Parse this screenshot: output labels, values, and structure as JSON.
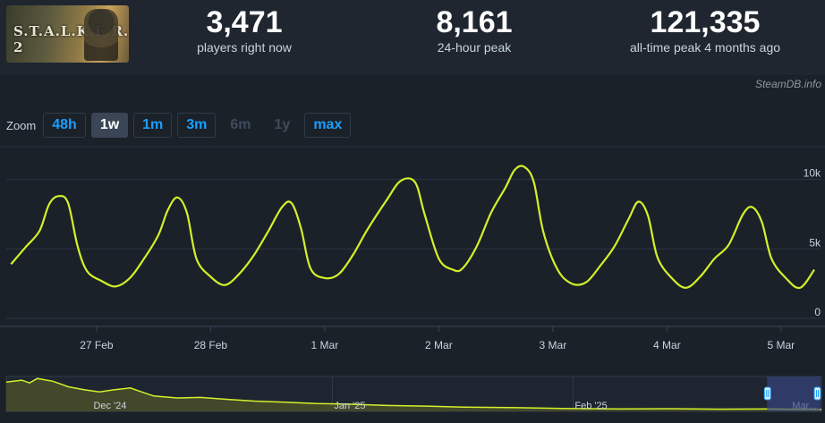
{
  "game": {
    "logo_text": "S.T.A.L.K.E.R. 2",
    "image": "game-cover-art"
  },
  "stats": [
    {
      "value": "3,471",
      "label": "players right now"
    },
    {
      "value": "8,161",
      "label": "24-hour peak"
    },
    {
      "value": "121,335",
      "label": "all-time peak 4 months ago"
    }
  ],
  "credit": "SteamDB.info",
  "zoom": {
    "label": "Zoom",
    "buttons": [
      {
        "label": "48h",
        "state": "enabled"
      },
      {
        "label": "1w",
        "state": "active"
      },
      {
        "label": "1m",
        "state": "enabled"
      },
      {
        "label": "3m",
        "state": "enabled"
      },
      {
        "label": "6m",
        "state": "disabled"
      },
      {
        "label": "1y",
        "state": "disabled"
      },
      {
        "label": "max",
        "state": "enabled"
      }
    ]
  },
  "colors": {
    "line": "#d4f02a",
    "background": "#1b2129",
    "accent": "#1a9fff",
    "navigator_fill": "#4a4f2a",
    "navigator_selection": "#3b4585"
  },
  "chart_data": {
    "type": "line",
    "series": [
      {
        "values": [
          [
            "2025-02-26T06:00",
            3900
          ],
          [
            "2025-02-26T09:00",
            5100
          ],
          [
            "2025-02-26T12:00",
            6300
          ],
          [
            "2025-02-26T14:00",
            8200
          ],
          [
            "2025-02-26T16:00",
            8800
          ],
          [
            "2025-02-26T18:00",
            8300
          ],
          [
            "2025-02-26T20:00",
            5200
          ],
          [
            "2025-02-26T22:00",
            3400
          ],
          [
            "2025-02-27T01:00",
            2700
          ],
          [
            "2025-02-27T04:00",
            2300
          ],
          [
            "2025-02-27T07:00",
            2900
          ],
          [
            "2025-02-27T10:00",
            4300
          ],
          [
            "2025-02-27T13:00",
            6000
          ],
          [
            "2025-02-27T15:00",
            7800
          ],
          [
            "2025-02-27T17:00",
            8700
          ],
          [
            "2025-02-27T19:00",
            7600
          ],
          [
            "2025-02-27T21:00",
            4300
          ],
          [
            "2025-02-28T00:00",
            3000
          ],
          [
            "2025-02-28T03:00",
            2400
          ],
          [
            "2025-02-28T06:00",
            3200
          ],
          [
            "2025-02-28T09:00",
            4500
          ],
          [
            "2025-02-28T12:00",
            6200
          ],
          [
            "2025-02-28T15:00",
            8000
          ],
          [
            "2025-02-28T17:00",
            8300
          ],
          [
            "2025-02-28T19:00",
            6500
          ],
          [
            "2025-02-28T21:00",
            3600
          ],
          [
            "2025-03-01T00:00",
            2900
          ],
          [
            "2025-03-01T03:00",
            3200
          ],
          [
            "2025-03-01T06:00",
            4600
          ],
          [
            "2025-03-01T09:00",
            6400
          ],
          [
            "2025-03-01T13:00",
            8500
          ],
          [
            "2025-03-01T16:00",
            9900
          ],
          [
            "2025-03-01T19:00",
            9800
          ],
          [
            "2025-03-01T21:00",
            7500
          ],
          [
            "2025-03-02T00:00",
            4300
          ],
          [
            "2025-03-02T03:00",
            3500
          ],
          [
            "2025-03-02T05:00",
            3600
          ],
          [
            "2025-03-02T08:00",
            5200
          ],
          [
            "2025-03-02T11:00",
            7600
          ],
          [
            "2025-03-02T14:00",
            9400
          ],
          [
            "2025-03-02T16:00",
            10700
          ],
          [
            "2025-03-02T18:00",
            10900
          ],
          [
            "2025-03-02T20:00",
            9800
          ],
          [
            "2025-03-02T22:00",
            6200
          ],
          [
            "2025-03-03T01:00",
            3500
          ],
          [
            "2025-03-03T04:00",
            2500
          ],
          [
            "2025-03-03T07:00",
            2600
          ],
          [
            "2025-03-03T10:00",
            3800
          ],
          [
            "2025-03-03T13:00",
            5200
          ],
          [
            "2025-03-03T16:00",
            7200
          ],
          [
            "2025-03-03T18:00",
            8400
          ],
          [
            "2025-03-03T20:00",
            7400
          ],
          [
            "2025-03-03T22:00",
            4400
          ],
          [
            "2025-03-04T01:00",
            2900
          ],
          [
            "2025-03-04T04:00",
            2200
          ],
          [
            "2025-03-04T07:00",
            3000
          ],
          [
            "2025-03-04T10:00",
            4300
          ],
          [
            "2025-03-04T13:00",
            5300
          ],
          [
            "2025-03-04T16:00",
            7500
          ],
          [
            "2025-03-04T18:00",
            8000
          ],
          [
            "2025-03-04T20:00",
            6900
          ],
          [
            "2025-03-04T22:00",
            4300
          ],
          [
            "2025-03-05T01:00",
            2900
          ],
          [
            "2025-03-05T04:00",
            2200
          ],
          [
            "2025-03-05T07:00",
            3500
          ]
        ]
      }
    ],
    "x_ticks": [
      "27 Feb",
      "28 Feb",
      "1 Mar",
      "2 Mar",
      "3 Mar",
      "4 Mar",
      "5 Mar"
    ],
    "y_ticks": [
      "0",
      "5k",
      "10k"
    ],
    "ylim": [
      0,
      10000
    ],
    "grid": true,
    "navigator": {
      "labels": [
        "Dec '24",
        "Jan '25",
        "Feb '25",
        "Mar..."
      ],
      "values": [
        [
          "2024-11-20",
          105000
        ],
        [
          "2024-11-22",
          112000
        ],
        [
          "2024-11-23",
          102000
        ],
        [
          "2024-11-24",
          118000
        ],
        [
          "2024-11-26",
          108000
        ],
        [
          "2024-11-28",
          88000
        ],
        [
          "2024-11-30",
          78000
        ],
        [
          "2024-12-02",
          70000
        ],
        [
          "2024-12-04",
          78000
        ],
        [
          "2024-12-06",
          84000
        ],
        [
          "2024-12-07",
          74000
        ],
        [
          "2024-12-09",
          55000
        ],
        [
          "2024-12-12",
          48000
        ],
        [
          "2024-12-15",
          50000
        ],
        [
          "2024-12-19",
          42000
        ],
        [
          "2024-12-22",
          37000
        ],
        [
          "2024-12-26",
          33000
        ],
        [
          "2024-12-30",
          28000
        ],
        [
          "2025-01-03",
          26000
        ],
        [
          "2025-01-08",
          21000
        ],
        [
          "2025-01-13",
          19000
        ],
        [
          "2025-01-18",
          15000
        ],
        [
          "2025-01-25",
          13000
        ],
        [
          "2025-02-01",
          10000
        ],
        [
          "2025-02-07",
          9000
        ],
        [
          "2025-02-14",
          9500
        ],
        [
          "2025-02-20",
          8000
        ],
        [
          "2025-02-26",
          8500
        ],
        [
          "2025-03-05",
          7000
        ]
      ],
      "selection": {
        "from": "2025-02-26",
        "to": "2025-03-05"
      }
    }
  }
}
